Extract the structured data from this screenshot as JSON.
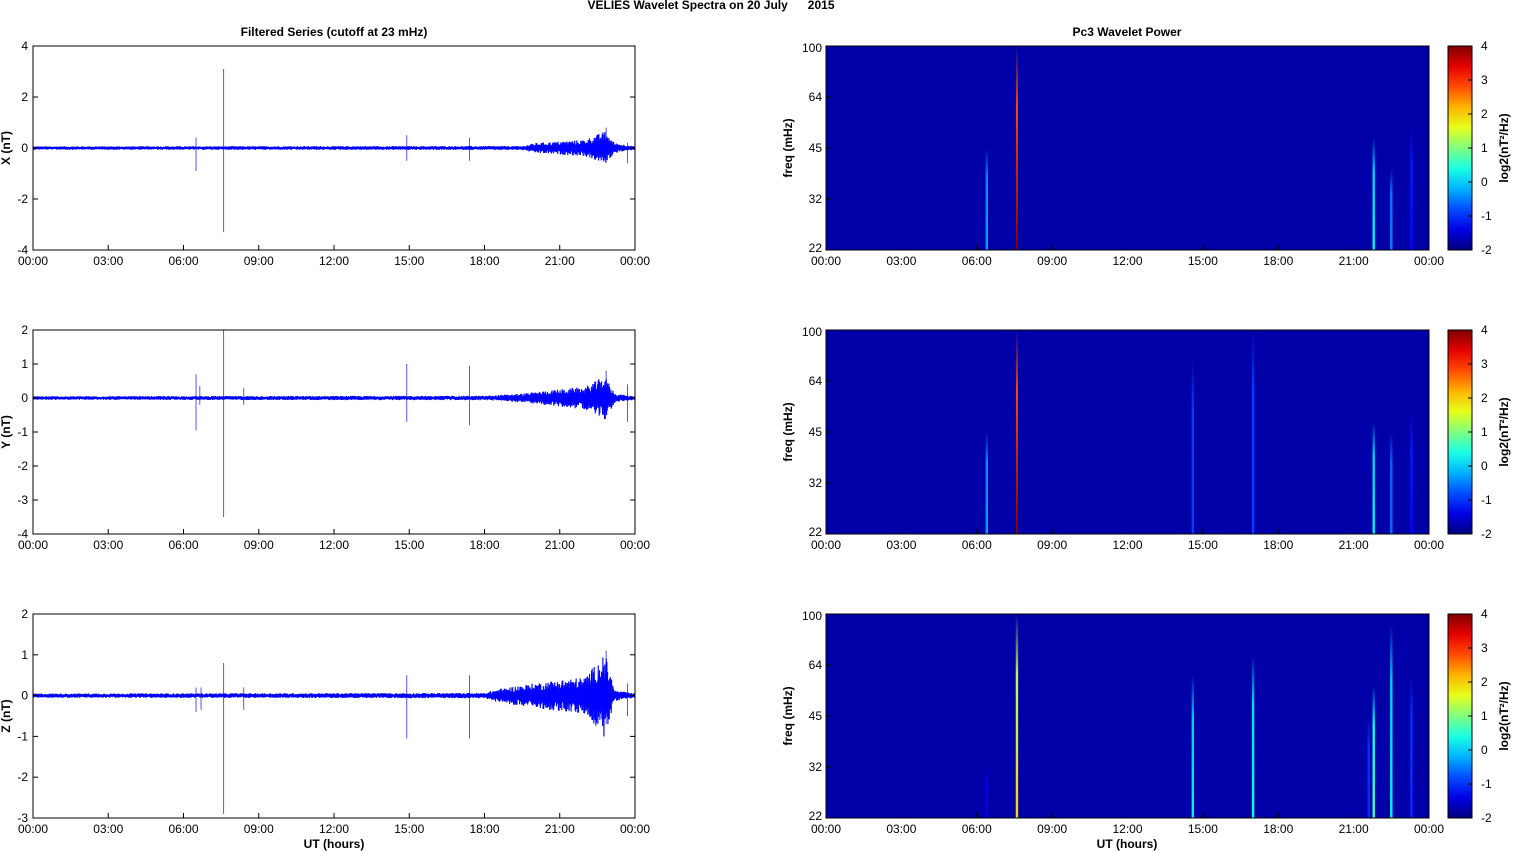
{
  "figure": {
    "title": "VELIES Wavelet Spectra on 20 July      2015",
    "left_title": "Filtered Series (cutoff at 23 mHz)",
    "right_title": "Pc3 Wavelet Power",
    "xlabel": "UT (hours)"
  },
  "chart_data": [
    {
      "type": "line",
      "name": "panel-x-filtered",
      "ylabel": "X (nT)",
      "ylim": [
        -4,
        4
      ],
      "yticks": [
        -4,
        -2,
        0,
        2,
        4
      ],
      "xlim": [
        0,
        24
      ],
      "xticks": [
        "00:00",
        "03:00",
        "06:00",
        "09:00",
        "12:00",
        "15:00",
        "18:00",
        "21:00",
        "00:00"
      ],
      "color": "#0000ff",
      "baseline_amplitude": 0.05,
      "envelope": [
        [
          0,
          0.05
        ],
        [
          19.5,
          0.06
        ],
        [
          20,
          0.15
        ],
        [
          21,
          0.2
        ],
        [
          22,
          0.25
        ],
        [
          22.8,
          0.5
        ],
        [
          23.2,
          0.15
        ],
        [
          24,
          0.05
        ]
      ],
      "spikes": [
        [
          6.5,
          0.4,
          -0.9
        ],
        [
          7.6,
          3.1,
          -3.3
        ],
        [
          14.9,
          0.5,
          -0.5
        ],
        [
          17.4,
          0.4,
          -0.5
        ],
        [
          22.85,
          0.8,
          -0.4
        ],
        [
          23.7,
          0.2,
          -0.6
        ]
      ]
    },
    {
      "type": "line",
      "name": "panel-y-filtered",
      "ylabel": "Y (nT)",
      "ylim": [
        -4,
        2
      ],
      "yticks": [
        -4,
        -3,
        -2,
        -1,
        0,
        1,
        2
      ],
      "xlim": [
        0,
        24
      ],
      "xticks": [
        "00:00",
        "03:00",
        "06:00",
        "09:00",
        "12:00",
        "15:00",
        "18:00",
        "21:00",
        "00:00"
      ],
      "color": "#0000ff",
      "baseline_amplitude": 0.04,
      "envelope": [
        [
          0,
          0.04
        ],
        [
          18,
          0.05
        ],
        [
          19.5,
          0.1
        ],
        [
          21,
          0.2
        ],
        [
          22,
          0.25
        ],
        [
          22.8,
          0.5
        ],
        [
          23.2,
          0.1
        ],
        [
          24,
          0.04
        ]
      ],
      "spikes": [
        [
          6.5,
          0.7,
          -0.95
        ],
        [
          6.65,
          0.35,
          -0.2
        ],
        [
          7.6,
          2.0,
          -3.5
        ],
        [
          8.4,
          0.3,
          -0.2
        ],
        [
          14.9,
          1.0,
          -0.7
        ],
        [
          17.4,
          0.95,
          -0.8
        ],
        [
          22.85,
          0.8,
          -0.4
        ],
        [
          23.7,
          0.4,
          -0.7
        ]
      ]
    },
    {
      "type": "line",
      "name": "panel-z-filtered",
      "ylabel": "Z (nT)",
      "ylim": [
        -3,
        2
      ],
      "yticks": [
        -3,
        -2,
        -1,
        0,
        1,
        2
      ],
      "xlim": [
        0,
        24
      ],
      "xticks": [
        "00:00",
        "03:00",
        "06:00",
        "09:00",
        "12:00",
        "15:00",
        "18:00",
        "21:00",
        "00:00"
      ],
      "color": "#0000ff",
      "baseline_amplitude": 0.04,
      "envelope": [
        [
          0,
          0.04
        ],
        [
          18,
          0.05
        ],
        [
          18.5,
          0.12
        ],
        [
          19.5,
          0.2
        ],
        [
          21,
          0.3
        ],
        [
          22,
          0.35
        ],
        [
          22.8,
          0.8
        ],
        [
          23.2,
          0.1
        ],
        [
          24,
          0.04
        ]
      ],
      "spikes": [
        [
          6.5,
          0.2,
          -0.4
        ],
        [
          6.7,
          0.2,
          -0.35
        ],
        [
          7.6,
          0.8,
          -2.9
        ],
        [
          8.4,
          0.2,
          -0.35
        ],
        [
          14.9,
          0.5,
          -1.05
        ],
        [
          17.4,
          0.5,
          -1.05
        ],
        [
          22.85,
          1.1,
          -0.7
        ],
        [
          23.7,
          0.3,
          -0.5
        ]
      ]
    },
    {
      "type": "heatmap",
      "name": "panel-x-wavelet",
      "ylabel": "freq (mHz)",
      "yticks": [
        "100",
        "64",
        "45",
        "32",
        "22"
      ],
      "ylim": [
        22,
        100
      ],
      "xlim": [
        0,
        24
      ],
      "xticks": [
        "00:00",
        "03:00",
        "06:00",
        "09:00",
        "12:00",
        "15:00",
        "18:00",
        "21:00",
        "00:00"
      ],
      "background_value": -2,
      "colorbar": {
        "label": "log2(nT²/Hz)",
        "range": [
          -2,
          4
        ],
        "ticks": [
          "4",
          "3",
          "2",
          "1",
          "0",
          "-1",
          "-2"
        ]
      },
      "streaks": [
        [
          6.4,
          -0.3,
          0.5
        ],
        [
          7.6,
          4.0,
          1.0
        ],
        [
          21.8,
          0.2,
          0.55
        ],
        [
          22.5,
          -0.5,
          0.4
        ],
        [
          23.3,
          -1.2,
          0.6
        ]
      ]
    },
    {
      "type": "heatmap",
      "name": "panel-y-wavelet",
      "ylabel": "freq (mHz)",
      "yticks": [
        "100",
        "64",
        "45",
        "32",
        "22"
      ],
      "ylim": [
        22,
        100
      ],
      "xlim": [
        0,
        24
      ],
      "xticks": [
        "00:00",
        "03:00",
        "06:00",
        "09:00",
        "12:00",
        "15:00",
        "18:00",
        "21:00",
        "00:00"
      ],
      "background_value": -2,
      "colorbar": {
        "label": "log2(nT²/Hz)",
        "range": [
          -2,
          4
        ],
        "ticks": [
          "4",
          "3",
          "2",
          "1",
          "0",
          "-1",
          "-2"
        ]
      },
      "streaks": [
        [
          6.4,
          -0.3,
          0.5
        ],
        [
          7.6,
          4.0,
          1.0
        ],
        [
          14.6,
          -0.9,
          0.85
        ],
        [
          17.0,
          -0.9,
          1.0
        ],
        [
          21.8,
          0.2,
          0.55
        ],
        [
          22.5,
          -0.6,
          0.5
        ],
        [
          23.3,
          -1.2,
          0.6
        ]
      ]
    },
    {
      "type": "heatmap",
      "name": "panel-z-wavelet",
      "ylabel": "freq (mHz)",
      "yticks": [
        "100",
        "64",
        "45",
        "32",
        "22"
      ],
      "ylim": [
        22,
        100
      ],
      "xlim": [
        0,
        24
      ],
      "xticks": [
        "00:00",
        "03:00",
        "06:00",
        "09:00",
        "12:00",
        "15:00",
        "18:00",
        "21:00",
        "00:00"
      ],
      "background_value": -2,
      "colorbar": {
        "label": "log2(nT²/Hz)",
        "range": [
          -2,
          4
        ],
        "ticks": [
          "4",
          "3",
          "2",
          "1",
          "0",
          "-1",
          "-2"
        ]
      },
      "streaks": [
        [
          6.4,
          -1.4,
          0.25
        ],
        [
          7.6,
          2.0,
          1.0
        ],
        [
          14.6,
          0.2,
          0.7
        ],
        [
          17.0,
          0.3,
          0.8
        ],
        [
          21.6,
          -1.0,
          0.5
        ],
        [
          21.8,
          0.6,
          0.65
        ],
        [
          22.5,
          0.2,
          0.95
        ],
        [
          23.3,
          -1.0,
          0.7
        ]
      ]
    }
  ]
}
